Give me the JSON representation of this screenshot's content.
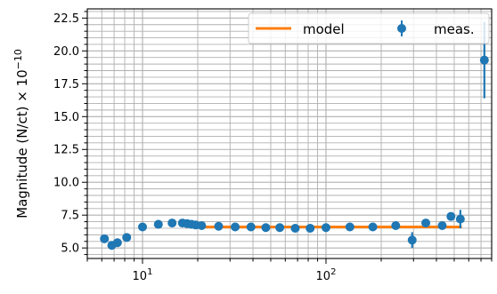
{
  "chart_data": {
    "type": "scatter",
    "title": "",
    "xlabel": "",
    "ylabel": "Magnitude (N/ct) × 10",
    "ylabel_exponent": "−10",
    "xscale": "log",
    "xlim": [
      5,
      800
    ],
    "ylim": [
      4.2,
      23.2
    ],
    "grid": true,
    "legend_position": "top-right",
    "x_ticks": [
      {
        "value": 10,
        "base": "10",
        "exp": "1"
      },
      {
        "value": 100,
        "base": "10",
        "exp": "2"
      }
    ],
    "y_ticks": [
      5.0,
      7.5,
      10.0,
      12.5,
      15.0,
      17.5,
      20.0,
      22.5
    ],
    "y_tick_labels": [
      "5.0",
      "7.5",
      "10.0",
      "12.5",
      "15.0",
      "17.5",
      "20.0",
      "22.5"
    ],
    "colors": {
      "model": "#ff7f0e",
      "meas": "#1f77b4",
      "grid": "#b0b0b0"
    },
    "series": [
      {
        "name": "model",
        "kind": "line",
        "x": [
          21,
          550
        ],
        "y": [
          6.6,
          6.6
        ]
      },
      {
        "name": "meas.",
        "kind": "errorbar",
        "points": [
          {
            "x": 6.2,
            "y": 5.7,
            "err": 0.1
          },
          {
            "x": 6.8,
            "y": 5.2,
            "err": 0.1
          },
          {
            "x": 7.3,
            "y": 5.4,
            "err": 0.1
          },
          {
            "x": 8.2,
            "y": 5.8,
            "err": 0.1
          },
          {
            "x": 10.0,
            "y": 6.6,
            "err": 0.1
          },
          {
            "x": 12.2,
            "y": 6.8,
            "err": 0.1
          },
          {
            "x": 14.5,
            "y": 6.9,
            "err": 0.1
          },
          {
            "x": 16.5,
            "y": 6.9,
            "err": 0.1
          },
          {
            "x": 17.5,
            "y": 6.85,
            "err": 0.1
          },
          {
            "x": 18.5,
            "y": 6.8,
            "err": 0.1
          },
          {
            "x": 19.5,
            "y": 6.75,
            "err": 0.1
          },
          {
            "x": 21.0,
            "y": 6.7,
            "err": 0.1
          },
          {
            "x": 26.0,
            "y": 6.65,
            "err": 0.1
          },
          {
            "x": 32.0,
            "y": 6.6,
            "err": 0.1
          },
          {
            "x": 39.0,
            "y": 6.6,
            "err": 0.1
          },
          {
            "x": 47.0,
            "y": 6.55,
            "err": 0.1
          },
          {
            "x": 56.0,
            "y": 6.55,
            "err": 0.1
          },
          {
            "x": 68.0,
            "y": 6.5,
            "err": 0.1
          },
          {
            "x": 82.0,
            "y": 6.5,
            "err": 0.1
          },
          {
            "x": 100.0,
            "y": 6.55,
            "err": 0.1
          },
          {
            "x": 135.0,
            "y": 6.6,
            "err": 0.1
          },
          {
            "x": 180.0,
            "y": 6.6,
            "err": 0.1
          },
          {
            "x": 240.0,
            "y": 6.7,
            "err": 0.1
          },
          {
            "x": 295.0,
            "y": 5.6,
            "err": 0.6
          },
          {
            "x": 350.0,
            "y": 6.9,
            "err": 0.1
          },
          {
            "x": 430.0,
            "y": 6.7,
            "err": 0.1
          },
          {
            "x": 480.0,
            "y": 7.4,
            "err": 0.3
          },
          {
            "x": 540.0,
            "y": 7.2,
            "err": 0.7
          },
          {
            "x": 730.0,
            "y": 19.3,
            "err": 2.9
          }
        ]
      }
    ]
  }
}
